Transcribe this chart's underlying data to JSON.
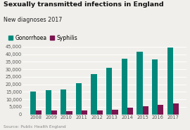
{
  "title": "Sexually transmitted infections in England",
  "subtitle": "New diagnoses 2017",
  "years": [
    2008,
    2009,
    2010,
    2011,
    2012,
    2013,
    2014,
    2015,
    2016,
    2017
  ],
  "gonorrhoea": [
    15000,
    16000,
    16500,
    21000,
    27000,
    31000,
    37000,
    41500,
    36500,
    44500
  ],
  "syphilis": [
    2800,
    2600,
    2400,
    2800,
    2800,
    3200,
    4500,
    5500,
    6500,
    7500
  ],
  "gonorrhoea_color": "#00897B",
  "syphilis_color": "#7B1550",
  "background_color": "#f0efeb",
  "title_fontsize": 6.8,
  "subtitle_fontsize": 5.8,
  "legend_fontsize": 5.5,
  "tick_fontsize": 4.8,
  "source_text": "Source: Public Health England",
  "ylim": [
    0,
    45000
  ],
  "yticks": [
    0,
    5000,
    10000,
    15000,
    20000,
    25000,
    30000,
    35000,
    40000,
    45000
  ]
}
